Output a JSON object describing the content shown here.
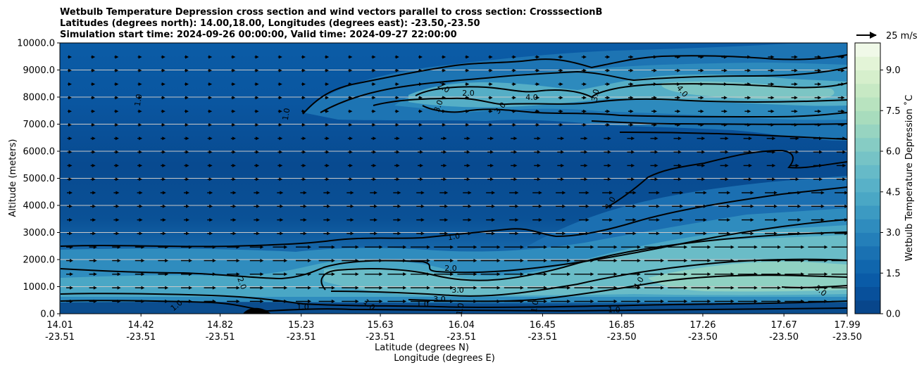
{
  "chart_data": {
    "type": "heatmap",
    "title_lines": [
      "Wetbulb Temperature Depression cross section and wind vectors parallel to cross section: CrosssectionB",
      "Latitudes (degrees north): 14.00,18.00, Longitudes (degrees east): -23.50,-23.50",
      "Simulation start time: 2024-09-26 00:00:00, Valid time: 2024-09-27 22:00:00"
    ],
    "xlabel": "Latitude (degrees N)",
    "xlabel2": "Longitude (degrees E)",
    "ylabel": "Altitude (meters)",
    "x_ticks": [
      {
        "lat": "14.01",
        "lon": "-23.51"
      },
      {
        "lat": "14.42",
        "lon": "-23.51"
      },
      {
        "lat": "14.82",
        "lon": "-23.51"
      },
      {
        "lat": "15.23",
        "lon": "-23.51"
      },
      {
        "lat": "15.63",
        "lon": "-23.51"
      },
      {
        "lat": "16.04",
        "lon": "-23.51"
      },
      {
        "lat": "16.45",
        "lon": "-23.51"
      },
      {
        "lat": "16.85",
        "lon": "-23.50"
      },
      {
        "lat": "17.26",
        "lon": "-23.50"
      },
      {
        "lat": "17.67",
        "lon": "-23.50"
      },
      {
        "lat": "17.99",
        "lon": "-23.50"
      }
    ],
    "x_tick_positions": [
      14.01,
      14.42,
      14.82,
      15.23,
      15.63,
      16.04,
      16.45,
      16.85,
      17.26,
      17.67,
      17.99
    ],
    "xlim": [
      14.01,
      17.99
    ],
    "y_ticks": [
      "0.0",
      "1000.0",
      "2000.0",
      "3000.0",
      "4000.0",
      "5000.0",
      "6000.0",
      "7000.0",
      "8000.0",
      "9000.0",
      "10000.0"
    ],
    "ylim": [
      0,
      10000
    ],
    "grid": "horizontal",
    "colorbar": {
      "label": "Wetbulb Temperature Depression ˚C",
      "ticks": [
        "0.0",
        "1.5",
        "3.0",
        "4.5",
        "6.0",
        "7.5",
        "9.0"
      ],
      "range": [
        0,
        10
      ],
      "levels": 20
    },
    "quiver_key": {
      "label": "25 m/s",
      "speed": 25
    },
    "colors": [
      "#08468b",
      "#08509b",
      "#0a5ba7",
      "#1066ad",
      "#1a71b2",
      "#247fb9",
      "#2f8cbe",
      "#3c9ac2",
      "#4aa7c5",
      "#58b1c8",
      "#66bac8",
      "#76c3c6",
      "#86ccc4",
      "#97d4c1",
      "#a8dcbd",
      "#b8e3bf",
      "#c7e9c4",
      "#d6efcc",
      "#e3f4d7",
      "#f0f9e8"
    ],
    "contour_labels": [
      "1.0",
      "1.0",
      "1.0",
      "2.0",
      "2.0",
      "3.0",
      "3.0",
      "4.0",
      "4.0",
      "3.0",
      "3.0",
      "1.0",
      "1.0",
      "2.0",
      "3.0",
      "4.0",
      "5.0",
      "2.0",
      "1.0",
      "1.0",
      "1.0",
      "1.0",
      "1.0",
      "1.0"
    ]
  }
}
